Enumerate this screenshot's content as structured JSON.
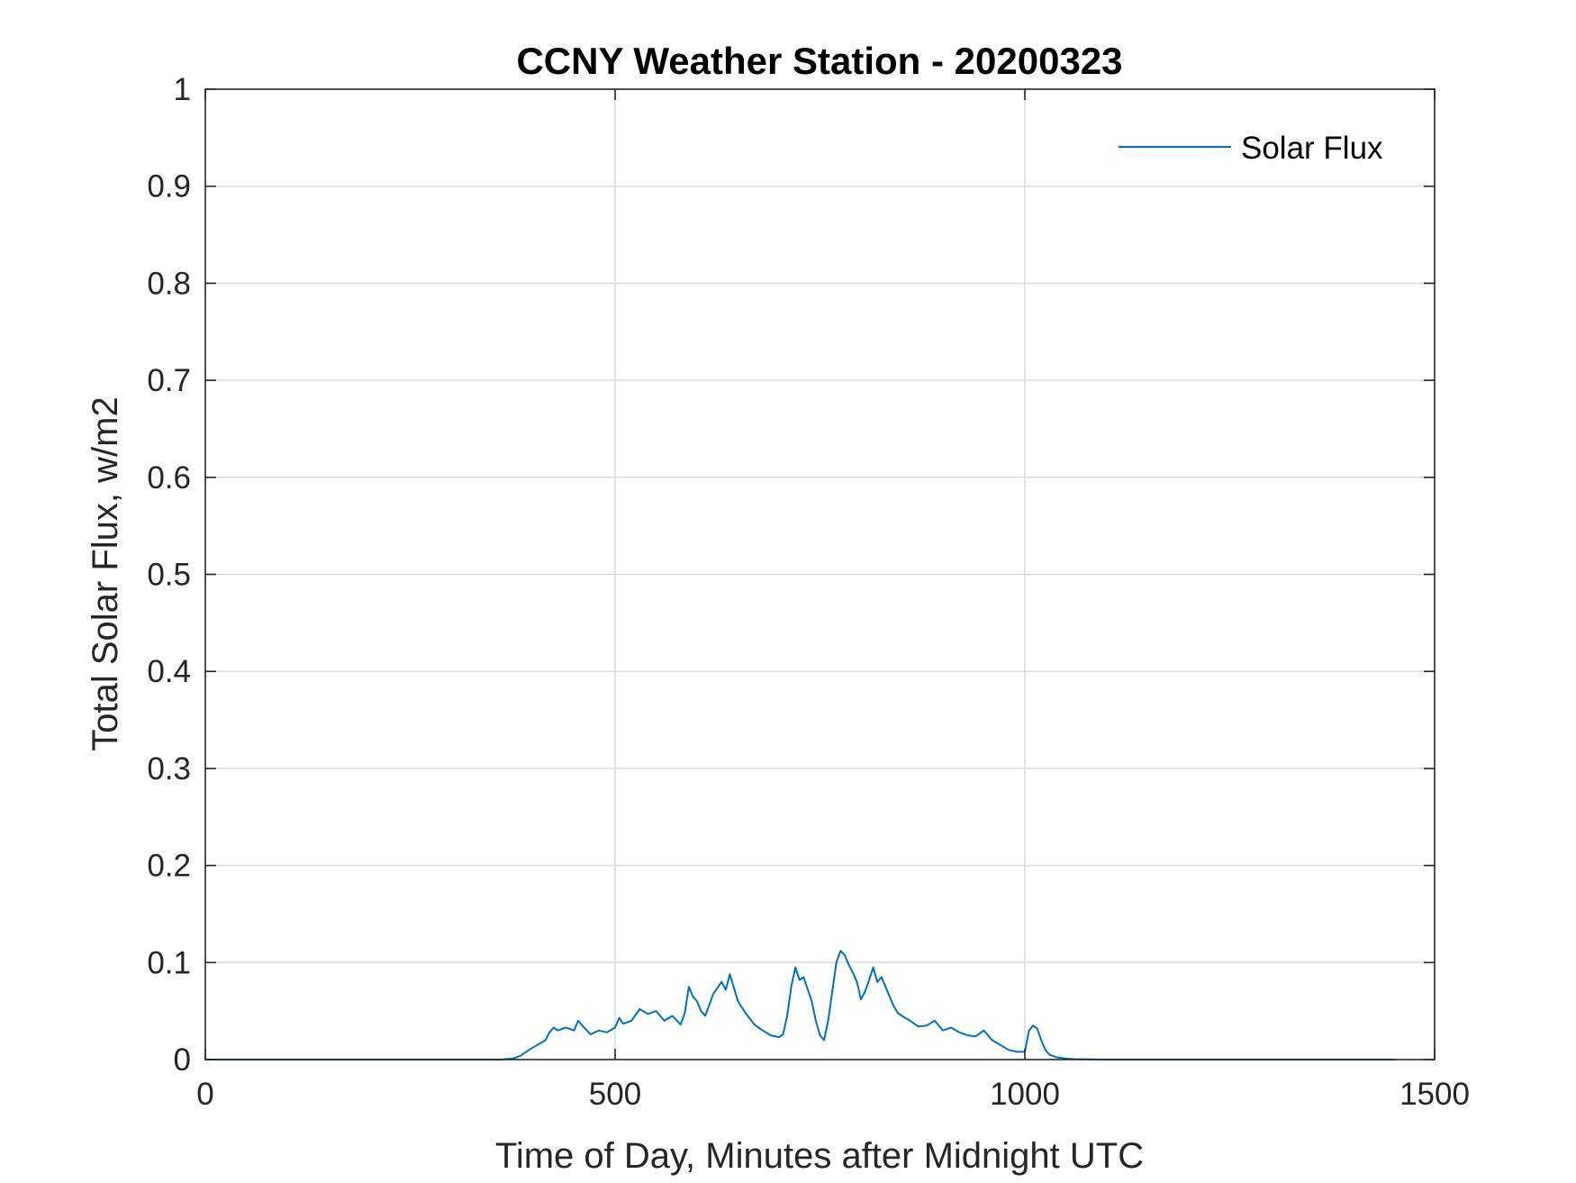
{
  "chart_data": {
    "type": "line",
    "title": "CCNY Weather Station - 20200323",
    "xlabel": "Time of Day, Minutes after Midnight UTC",
    "ylabel": "Total Solar Flux, w/m2",
    "xlim": [
      0,
      1500
    ],
    "ylim": [
      0,
      1
    ],
    "xticks": [
      0,
      500,
      1000,
      1500
    ],
    "xtick_labels": [
      "0",
      "500",
      "1000",
      "1500"
    ],
    "yticks": [
      0,
      0.1,
      0.2,
      0.3,
      0.4,
      0.5,
      0.6,
      0.7,
      0.8,
      0.9,
      1
    ],
    "ytick_labels": [
      "0",
      "0.1",
      "0.2",
      "0.3",
      "0.4",
      "0.5",
      "0.6",
      "0.7",
      "0.8",
      "0.9",
      "1"
    ],
    "grid": true,
    "legend_position": "top-right",
    "series": [
      {
        "name": "Solar Flux",
        "color": "#0072BD",
        "x": [
          0,
          360,
          375,
          385,
          395,
          405,
          415,
          420,
          425,
          430,
          440,
          450,
          455,
          460,
          470,
          480,
          490,
          500,
          505,
          510,
          520,
          530,
          540,
          550,
          560,
          570,
          580,
          585,
          590,
          595,
          600,
          605,
          610,
          620,
          630,
          635,
          640,
          650,
          660,
          670,
          680,
          690,
          700,
          705,
          710,
          715,
          720,
          725,
          730,
          740,
          745,
          750,
          755,
          760,
          770,
          775,
          780,
          785,
          790,
          795,
          800,
          805,
          810,
          815,
          820,
          825,
          830,
          840,
          845,
          850,
          860,
          870,
          880,
          890,
          900,
          910,
          920,
          930,
          940,
          950,
          960,
          970,
          980,
          990,
          1000,
          1005,
          1010,
          1015,
          1020,
          1025,
          1030,
          1040,
          1050,
          1060,
          1080,
          1100,
          1450
        ],
        "values": [
          0,
          0,
          0.001,
          0.004,
          0.01,
          0.015,
          0.02,
          0.028,
          0.033,
          0.03,
          0.033,
          0.03,
          0.04,
          0.035,
          0.026,
          0.03,
          0.028,
          0.033,
          0.043,
          0.037,
          0.04,
          0.052,
          0.047,
          0.05,
          0.04,
          0.045,
          0.036,
          0.048,
          0.075,
          0.065,
          0.06,
          0.05,
          0.045,
          0.068,
          0.08,
          0.072,
          0.088,
          0.06,
          0.047,
          0.036,
          0.03,
          0.025,
          0.023,
          0.026,
          0.045,
          0.075,
          0.095,
          0.082,
          0.085,
          0.06,
          0.04,
          0.025,
          0.02,
          0.04,
          0.1,
          0.112,
          0.108,
          0.098,
          0.09,
          0.08,
          0.062,
          0.07,
          0.082,
          0.095,
          0.08,
          0.085,
          0.075,
          0.055,
          0.048,
          0.045,
          0.04,
          0.034,
          0.035,
          0.04,
          0.03,
          0.033,
          0.028,
          0.025,
          0.024,
          0.03,
          0.02,
          0.015,
          0.01,
          0.008,
          0.008,
          0.03,
          0.035,
          0.032,
          0.02,
          0.01,
          0.005,
          0.002,
          0.001,
          0.0005,
          0.0002,
          0,
          0
        ]
      }
    ]
  }
}
